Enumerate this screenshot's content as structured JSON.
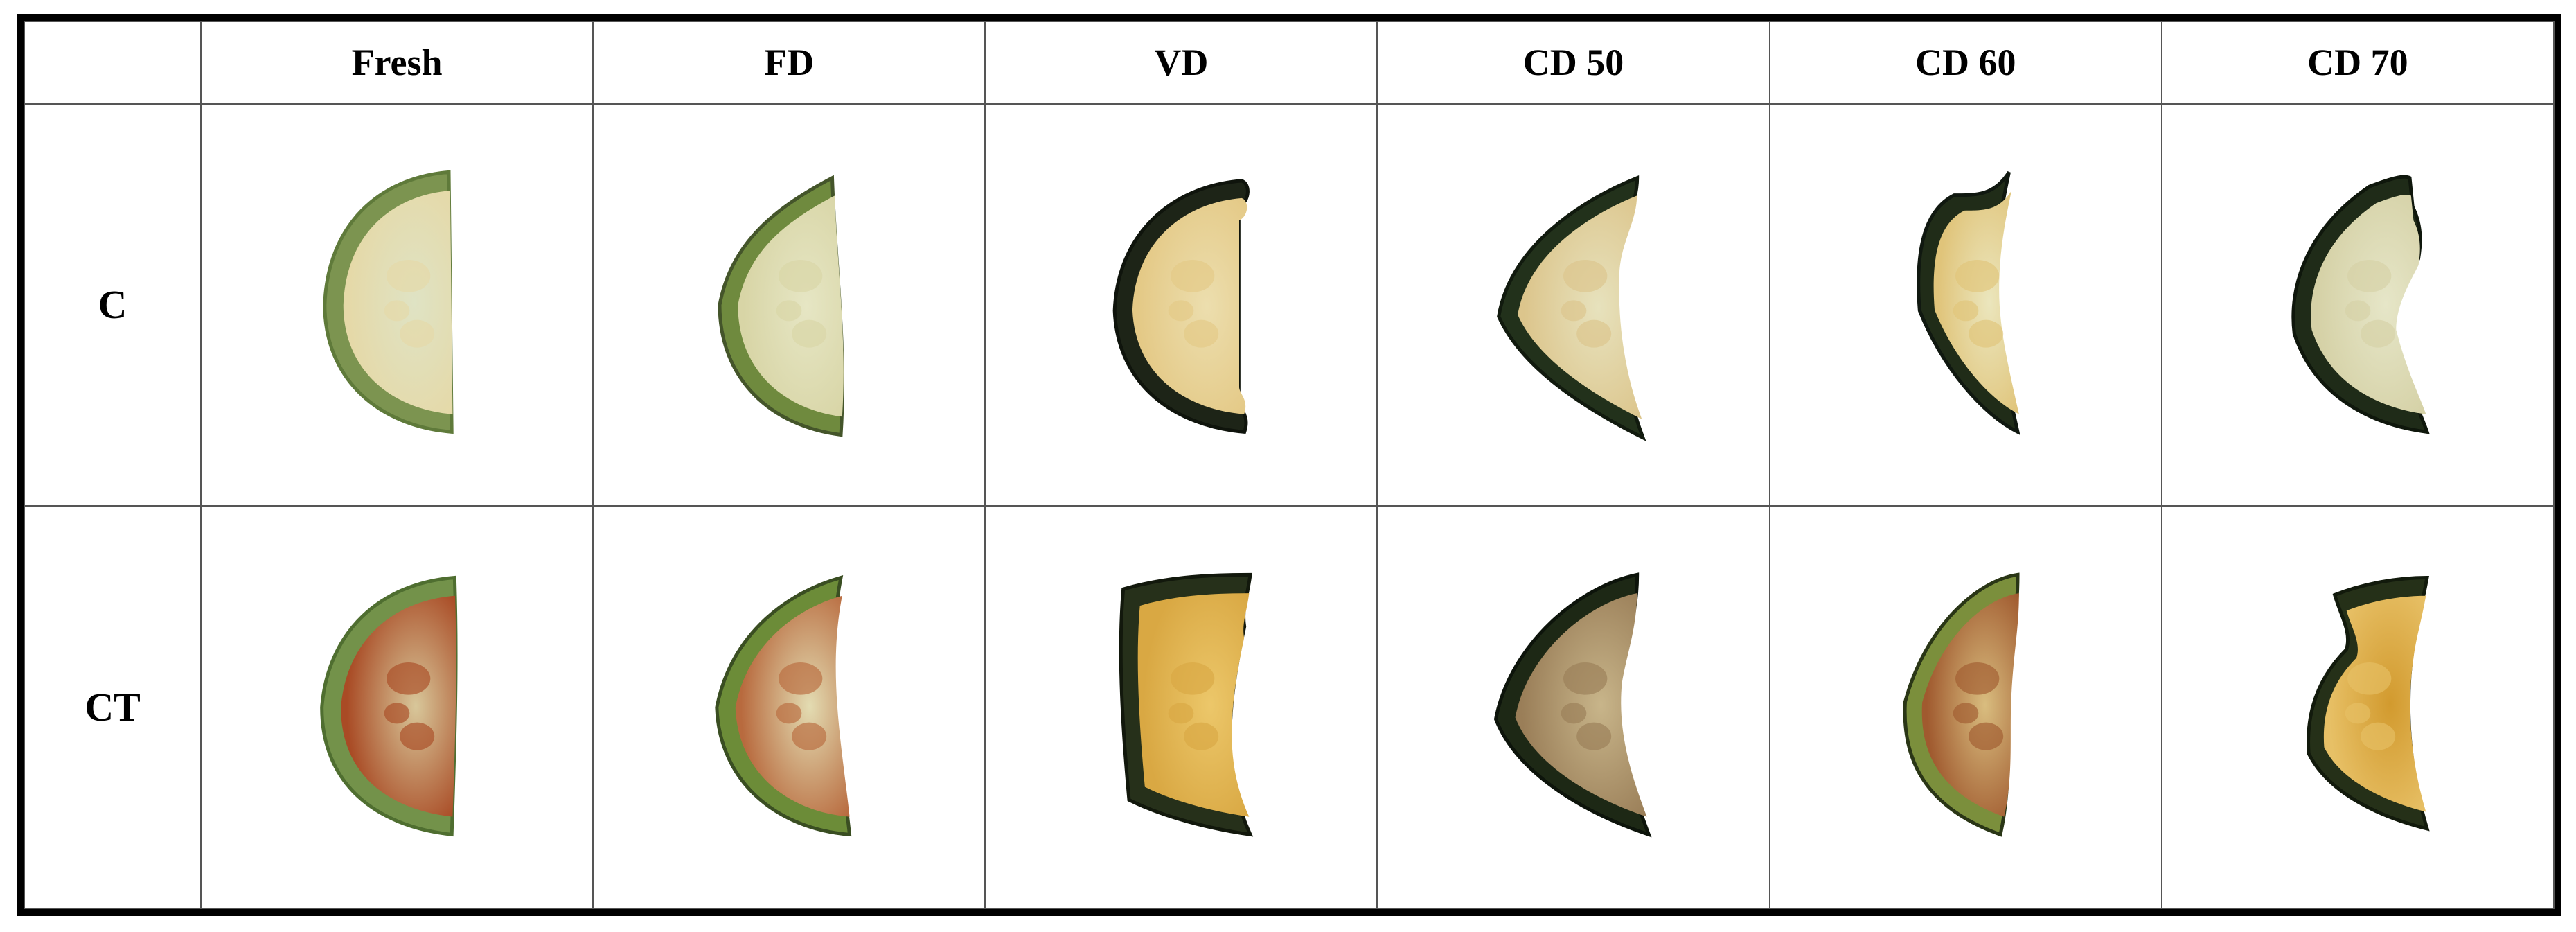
{
  "columns": [
    "",
    "Fresh",
    "FD",
    "VD",
    "CD 50",
    "CD 60",
    "CD 70"
  ],
  "rows": [
    {
      "label": "C",
      "samples": [
        {
          "flesh": "#dfe3c4",
          "rind": "#7c9450",
          "spot": "#e5d9a8",
          "edge": "#5f7a3a"
        },
        {
          "flesh": "#e6e6c4",
          "rind": "#6f8a3e",
          "spot": "#d8d5a6",
          "edge": "#44552a"
        },
        {
          "flesh": "#ecdeae",
          "rind": "#1d2417",
          "spot": "#e4c986",
          "edge": "#0f140c"
        },
        {
          "flesh": "#e7e2bd",
          "rind": "#22311b",
          "spot": "#dcc58c",
          "edge": "#111a0e"
        },
        {
          "flesh": "#ebe6bd",
          "rind": "#202c18",
          "spot": "#e0c47a",
          "edge": "#101810"
        },
        {
          "flesh": "#e6e6c8",
          "rind": "#1f2b18",
          "spot": "#d5d1a6",
          "edge": "#0f170c"
        }
      ]
    },
    {
      "label": "CT",
      "samples": [
        {
          "flesh": "#d8c79a",
          "rind": "#73924a",
          "spot": "#a94b25",
          "edge": "#4f6e30"
        },
        {
          "flesh": "#e3dcb2",
          "rind": "#6c8c38",
          "spot": "#b86a3e",
          "edge": "#3a4e22"
        },
        {
          "flesh": "#ecc76a",
          "rind": "#26301a",
          "spot": "#d9a843",
          "edge": "#12180c"
        },
        {
          "flesh": "#c8b58a",
          "rind": "#1d2815",
          "spot": "#9a7e58",
          "edge": "#0d140b"
        },
        {
          "flesh": "#d9bd7f",
          "rind": "#7b8f3c",
          "spot": "#a05a2f",
          "edge": "#2a3616"
        },
        {
          "flesh": "#d29a2e",
          "rind": "#253018",
          "spot": "#e7c066",
          "edge": "#121a0c"
        }
      ]
    }
  ]
}
